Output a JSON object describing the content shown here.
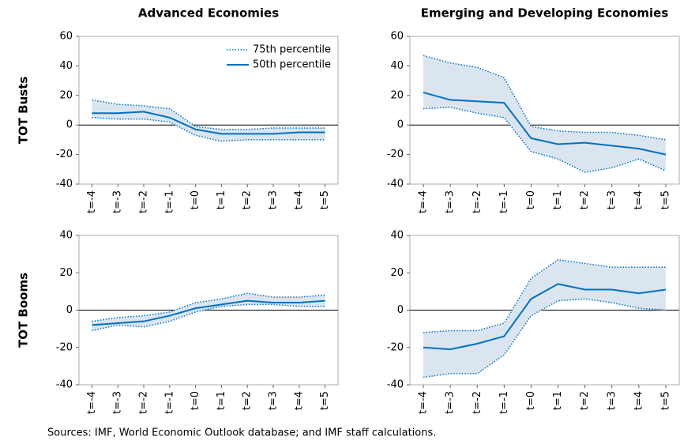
{
  "chart_data": [
    {
      "type": "line",
      "title": "Advanced Economies",
      "ylabel": "TOT Busts",
      "categories": [
        "t=-4",
        "t=-3",
        "t=-2",
        "t=-1",
        "t=0",
        "t=1",
        "t=2",
        "t=3",
        "t=4",
        "t=5"
      ],
      "ylim": [
        -40,
        60
      ],
      "yticks": [
        -40,
        -20,
        0,
        20,
        40,
        60
      ],
      "legend": "upper right",
      "series": [
        {
          "name": "75th percentile",
          "color": "#0070c0",
          "band_color": "#dae5f0",
          "values": [
            17,
            14,
            13,
            11,
            -1,
            -3,
            -3,
            -2,
            -2,
            -2
          ],
          "values_low": [
            5,
            4,
            4,
            2,
            -7,
            -11,
            -10,
            -10,
            -10,
            -10
          ]
        },
        {
          "name": "50th percentile",
          "color": "#0070c0",
          "values": [
            8,
            8,
            9,
            5,
            -3,
            -6,
            -6,
            -6,
            -5,
            -5
          ]
        }
      ]
    },
    {
      "type": "line",
      "title": "Emerging and Developing Economies",
      "categories": [
        "t=-4",
        "t=-3",
        "t=-2",
        "t=-1",
        "t=0",
        "t=1",
        "t=2",
        "t=3",
        "t=4",
        "t=5"
      ],
      "ylim": [
        -40,
        60
      ],
      "yticks": [
        -40,
        -20,
        0,
        20,
        40,
        60
      ],
      "series": [
        {
          "color": "#0070c0",
          "band_color": "#dae5f0",
          "values": [
            47,
            42,
            39,
            32,
            -1,
            -4,
            -5,
            -5,
            -7,
            -10
          ],
          "values_low": [
            11,
            12,
            8,
            5,
            -18,
            -23,
            -32,
            -29,
            -23,
            -31
          ]
        },
        {
          "color": "#0070c0",
          "values": [
            22,
            17,
            16,
            15,
            -9,
            -13,
            -12,
            -14,
            -16,
            -20
          ]
        }
      ]
    },
    {
      "type": "line",
      "ylabel": "TOT Booms",
      "categories": [
        "t=-4",
        "t=-3",
        "t=-2",
        "t=-1",
        "t=0",
        "t=1",
        "t=2",
        "t=3",
        "t=4",
        "t=5"
      ],
      "ylim": [
        -40,
        40
      ],
      "yticks": [
        -40,
        -20,
        0,
        20,
        40
      ],
      "series": [
        {
          "color": "#0070c0",
          "band_color": "#dae5f0",
          "values": [
            -6,
            -4,
            -3,
            -1,
            4,
            6,
            9,
            7,
            7,
            8
          ],
          "values_low": [
            -11,
            -8,
            -9,
            -6,
            -1,
            2,
            3,
            3,
            2,
            2
          ]
        },
        {
          "color": "#0070c0",
          "values": [
            -8,
            -7,
            -6,
            -3,
            1,
            3,
            5,
            4,
            4,
            5
          ]
        }
      ]
    },
    {
      "type": "line",
      "categories": [
        "t=-4",
        "t=-3",
        "t=-2",
        "t=-1",
        "t=0",
        "t=1",
        "t=2",
        "t=3",
        "t=4",
        "t=5"
      ],
      "ylim": [
        -40,
        40
      ],
      "yticks": [
        -40,
        -20,
        0,
        20,
        40
      ],
      "series": [
        {
          "color": "#0070c0",
          "band_color": "#dae5f0",
          "values": [
            -12,
            -11,
            -11,
            -7,
            17,
            27,
            25,
            23,
            23,
            23
          ],
          "values_low": [
            -36,
            -34,
            -34,
            -24,
            -3,
            5,
            6,
            4,
            1,
            0
          ]
        },
        {
          "color": "#0070c0",
          "values": [
            -20,
            -21,
            -18,
            -14,
            6,
            14,
            11,
            11,
            9,
            11
          ]
        }
      ]
    }
  ],
  "note": "Sources: IMF, World Economic Outlook database; and IMF staff calculations."
}
